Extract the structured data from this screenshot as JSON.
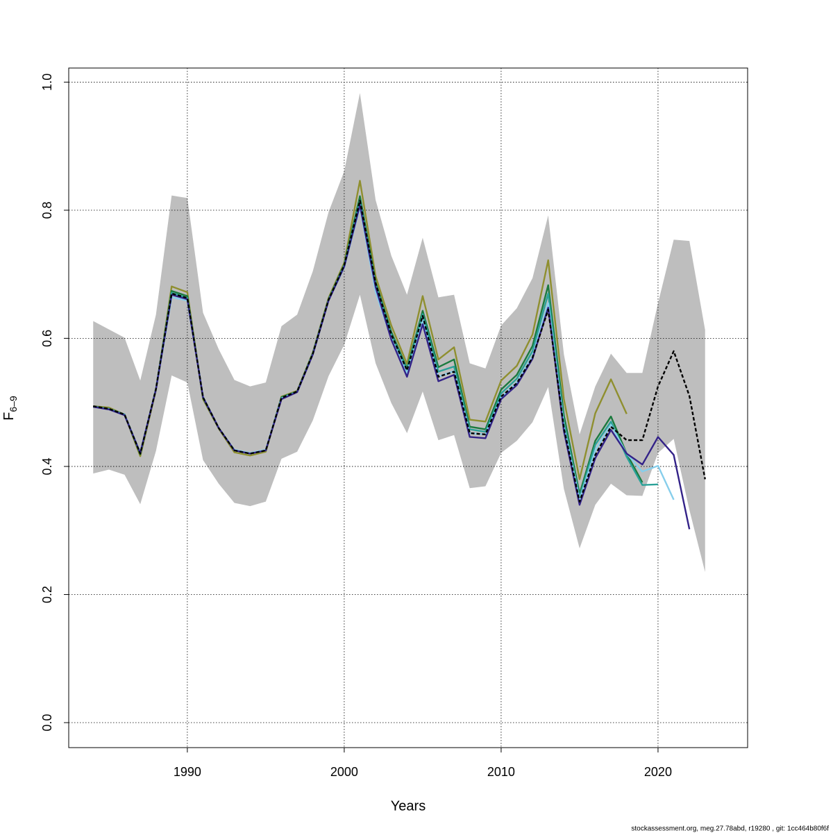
{
  "chart_data": {
    "type": "line",
    "xlabel": "Years",
    "ylabel": {
      "main": "F",
      "sub": "6–9"
    },
    "footer": "stockassessment.org, meg.27.78abd, r19280 , git: 1cc464b80f6f",
    "x": [
      1984,
      1985,
      1986,
      1987,
      1988,
      1989,
      1990,
      1991,
      1992,
      1993,
      1994,
      1995,
      1996,
      1997,
      1998,
      1999,
      2000,
      2001,
      2002,
      2003,
      2004,
      2005,
      2006,
      2007,
      2008,
      2009,
      2010,
      2011,
      2012,
      2013,
      2014,
      2015,
      2016,
      2017,
      2018,
      2019,
      2020,
      2021,
      2022,
      2023
    ],
    "xlim": [
      1982.44,
      2025.71
    ],
    "ylim": [
      -0.039,
      1.022
    ],
    "xticks": [
      1990,
      2000,
      2010,
      2020
    ],
    "yticks": [
      {
        "value": 0,
        "label": "0.0"
      },
      0.2,
      0.4,
      0.6,
      0.8,
      {
        "value": 1,
        "label": "1.0"
      }
    ],
    "grid": true,
    "band": {
      "color": "#bebebe",
      "upper": [
        0.627,
        0.614,
        0.601,
        0.534,
        0.637,
        0.823,
        0.819,
        0.64,
        0.583,
        0.535,
        0.525,
        0.531,
        0.619,
        0.637,
        0.705,
        0.797,
        0.861,
        0.983,
        0.816,
        0.729,
        0.668,
        0.757,
        0.664,
        0.668,
        0.561,
        0.553,
        0.62,
        0.647,
        0.694,
        0.792,
        0.575,
        0.45,
        0.525,
        0.576,
        0.546,
        0.546,
        0.655,
        0.754,
        0.752,
        0.613
      ],
      "lower": [
        0.389,
        0.395,
        0.387,
        0.341,
        0.424,
        0.542,
        0.531,
        0.41,
        0.373,
        0.343,
        0.338,
        0.345,
        0.412,
        0.423,
        0.472,
        0.541,
        0.59,
        0.668,
        0.561,
        0.499,
        0.452,
        0.517,
        0.441,
        0.449,
        0.366,
        0.369,
        0.421,
        0.44,
        0.469,
        0.524,
        0.365,
        0.272,
        0.34,
        0.373,
        0.355,
        0.354,
        0.421,
        0.443,
        0.332,
        0.235
      ]
    },
    "series": [
      {
        "color": "#8f8f2f",
        "values": [
          0.494,
          0.492,
          0.481,
          0.416,
          0.519,
          0.681,
          0.672,
          0.505,
          0.459,
          0.422,
          0.417,
          0.423,
          0.509,
          0.518,
          0.578,
          0.663,
          0.718,
          0.846,
          0.697,
          0.62,
          0.56,
          0.666,
          0.567,
          0.586,
          0.473,
          0.47,
          0.534,
          0.557,
          0.606,
          0.722,
          0.505,
          0.38,
          0.483,
          0.536,
          0.482,
          null,
          null,
          null,
          null,
          null
        ]
      },
      {
        "color": "#1b7a3e",
        "values": [
          0.494,
          0.49,
          0.481,
          0.419,
          0.521,
          0.674,
          0.666,
          0.507,
          0.46,
          0.425,
          0.42,
          0.425,
          0.508,
          0.517,
          0.577,
          0.661,
          0.715,
          0.822,
          0.688,
          0.61,
          0.553,
          0.643,
          0.555,
          0.567,
          0.462,
          0.458,
          0.52,
          0.543,
          0.588,
          0.683,
          0.48,
          0.357,
          0.44,
          0.478,
          0.42,
          0.375,
          null,
          null,
          null,
          null
        ]
      },
      {
        "color": "#2aa198",
        "values": [
          0.493,
          0.49,
          0.481,
          0.421,
          0.521,
          0.671,
          0.663,
          0.508,
          0.46,
          0.425,
          0.42,
          0.425,
          0.507,
          0.517,
          0.576,
          0.66,
          0.714,
          0.815,
          0.684,
          0.606,
          0.551,
          0.638,
          0.548,
          0.556,
          0.458,
          0.454,
          0.514,
          0.537,
          0.58,
          0.67,
          0.47,
          0.352,
          0.434,
          0.47,
          0.415,
          0.371,
          0.372,
          null,
          null,
          null
        ]
      },
      {
        "color": "#87ceeb",
        "values": [
          0.493,
          0.489,
          0.48,
          0.422,
          0.52,
          0.664,
          0.659,
          0.509,
          0.46,
          0.426,
          0.421,
          0.426,
          0.506,
          0.516,
          0.575,
          0.659,
          0.711,
          0.805,
          0.672,
          0.6,
          0.545,
          0.628,
          0.54,
          0.549,
          0.452,
          0.45,
          0.508,
          0.531,
          0.572,
          0.655,
          0.462,
          0.348,
          0.425,
          0.465,
          0.42,
          0.392,
          0.401,
          0.348,
          null,
          null
        ]
      },
      {
        "color": "#332288",
        "values": [
          0.493,
          0.489,
          0.48,
          0.421,
          0.52,
          0.668,
          0.661,
          0.508,
          0.46,
          0.425,
          0.42,
          0.425,
          0.505,
          0.516,
          0.575,
          0.659,
          0.712,
          0.808,
          0.68,
          0.598,
          0.54,
          0.622,
          0.533,
          0.543,
          0.446,
          0.444,
          0.505,
          0.527,
          0.568,
          0.648,
          0.455,
          0.34,
          0.413,
          0.457,
          0.42,
          0.403,
          0.446,
          0.418,
          0.302,
          null
        ]
      },
      {
        "color": "#000000",
        "dashed": true,
        "values": [
          0.494,
          0.49,
          0.481,
          0.42,
          0.521,
          0.67,
          0.663,
          0.508,
          0.46,
          0.425,
          0.42,
          0.425,
          0.507,
          0.517,
          0.576,
          0.66,
          0.714,
          0.815,
          0.686,
          0.606,
          0.55,
          0.635,
          0.54,
          0.548,
          0.452,
          0.45,
          0.509,
          0.53,
          0.57,
          0.645,
          0.46,
          0.345,
          0.418,
          0.462,
          0.441,
          0.441,
          0.525,
          0.58,
          0.51,
          0.38
        ]
      }
    ]
  }
}
